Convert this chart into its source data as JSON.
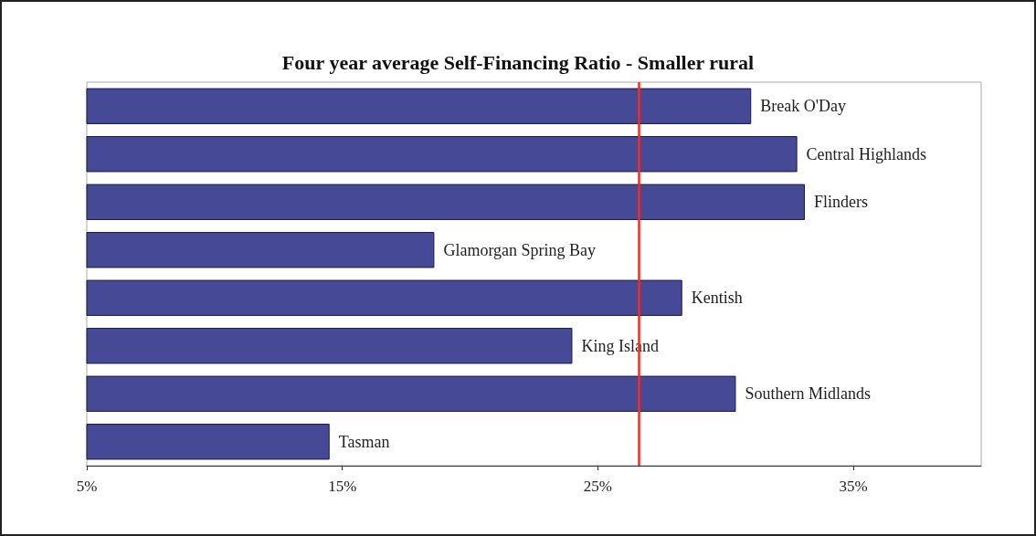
{
  "chart_data": {
    "type": "bar",
    "orientation": "horizontal",
    "title": "Four year average Self-Financing Ratio - Smaller rural",
    "categories": [
      "Break O'Day",
      "Central Highlands",
      "Flinders",
      "Glamorgan Spring Bay",
      "Kentish",
      "King Island",
      "Southern Midlands",
      "Tasman"
    ],
    "values": [
      31.0,
      32.8,
      33.1,
      18.6,
      28.3,
      24.0,
      30.4,
      14.5
    ],
    "color": "#464a96",
    "xlim": [
      5,
      40
    ],
    "xticks": [
      {
        "value": 5,
        "label": "5%"
      },
      {
        "value": 15,
        "label": "15%"
      },
      {
        "value": 25,
        "label": "25%"
      },
      {
        "value": 35,
        "label": "35%"
      }
    ],
    "ref_lines": [
      {
        "axis": "x",
        "value": 26.6,
        "color": "#e8302a"
      }
    ],
    "tick_labels": "x",
    "grid": false
  }
}
